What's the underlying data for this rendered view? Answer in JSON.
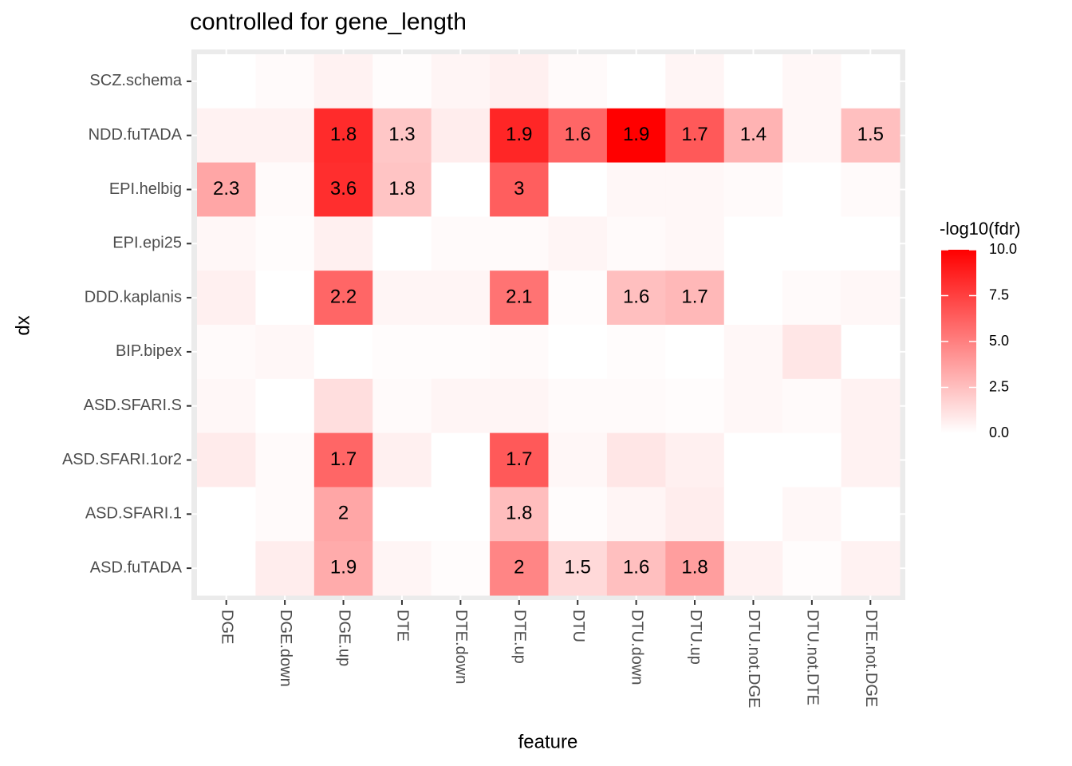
{
  "chart_data": {
    "type": "heatmap",
    "title": "controlled for gene_length",
    "x_label": "feature",
    "y_label": "dx",
    "x_categories": [
      "DGE",
      "DGE.down",
      "DGE.up",
      "DTE",
      "DTE.down",
      "DTE.up",
      "DTU",
      "DTU.down",
      "DTU.up",
      "DTU.not.DGE",
      "DTU.not.DTE",
      "DTE.not.DGE"
    ],
    "y_categories": [
      "SCZ.schema",
      "NDD.fuTADA",
      "EPI.helbig",
      "EPI.epi25",
      "DDD.kaplanis",
      "BIP.bipex",
      "ASD.SFARI.S",
      "ASD.SFARI.1or2",
      "ASD.SFARI.1",
      "ASD.fuTADA"
    ],
    "values": [
      [
        0,
        0.2,
        0.5,
        0.1,
        0.4,
        0.6,
        0.2,
        0,
        0.4,
        0,
        0.3,
        0
      ],
      [
        0.5,
        0.5,
        8.3,
        2.2,
        0.7,
        8.5,
        6.0,
        10.0,
        6.5,
        3.0,
        0.3,
        2.5
      ],
      [
        3.5,
        0.2,
        8.2,
        2.3,
        0,
        6.3,
        0,
        0.3,
        0.3,
        0.2,
        0,
        0.2
      ],
      [
        0.3,
        0.1,
        0.6,
        0,
        0.2,
        0.2,
        0.4,
        0.2,
        0.3,
        0,
        0,
        0
      ],
      [
        0.6,
        0,
        6.0,
        0.4,
        0.4,
        5.5,
        0.1,
        2.5,
        2.8,
        0,
        0.2,
        0.3
      ],
      [
        0.2,
        0.3,
        0,
        0.1,
        0.1,
        0.2,
        0,
        0.1,
        0,
        0.3,
        1.0,
        0
      ],
      [
        0.3,
        0,
        1.3,
        0.2,
        0.4,
        0.4,
        0.2,
        0.2,
        0.1,
        0.3,
        0.2,
        0.5
      ],
      [
        0.8,
        0.2,
        6.0,
        0.6,
        0,
        6.5,
        0.3,
        1.0,
        0.6,
        0,
        0,
        0.5
      ],
      [
        0,
        0.2,
        3.5,
        0,
        0,
        2.6,
        0.1,
        0.4,
        0.7,
        0,
        0.3,
        0
      ],
      [
        0,
        0.7,
        3.3,
        0.4,
        0.1,
        4.8,
        1.5,
        2.5,
        3.8,
        0.5,
        0.1,
        0.5
      ]
    ],
    "cell_labels": [
      [
        null,
        null,
        null,
        null,
        null,
        null,
        null,
        null,
        null,
        null,
        null,
        null
      ],
      [
        null,
        null,
        1.8,
        1.3,
        null,
        1.9,
        1.6,
        1.9,
        1.7,
        1.4,
        null,
        1.5
      ],
      [
        2.3,
        null,
        3.6,
        1.8,
        null,
        3,
        null,
        null,
        null,
        null,
        null,
        null
      ],
      [
        null,
        null,
        null,
        null,
        null,
        null,
        null,
        null,
        null,
        null,
        null,
        null
      ],
      [
        null,
        null,
        2.2,
        null,
        null,
        2.1,
        null,
        1.6,
        1.7,
        null,
        null,
        null
      ],
      [
        null,
        null,
        null,
        null,
        null,
        null,
        null,
        null,
        null,
        null,
        null,
        null
      ],
      [
        null,
        null,
        null,
        null,
        null,
        null,
        null,
        null,
        null,
        null,
        null,
        null
      ],
      [
        null,
        null,
        1.7,
        null,
        null,
        1.7,
        null,
        null,
        null,
        null,
        null,
        null
      ],
      [
        null,
        null,
        2,
        null,
        null,
        1.8,
        null,
        null,
        null,
        null,
        null,
        null
      ],
      [
        null,
        null,
        1.9,
        null,
        null,
        2,
        1.5,
        1.6,
        1.8,
        null,
        null,
        null
      ]
    ],
    "color_low": "#ffffff",
    "color_high": "#ff0000",
    "legend": {
      "title": "-log10(fdr)",
      "lim": [
        0,
        10
      ],
      "ticks": [
        {
          "value": 0,
          "label": "0.0"
        },
        {
          "value": 2.5,
          "label": "2.5"
        },
        {
          "value": 5,
          "label": "5.0"
        },
        {
          "value": 7.5,
          "label": "7.5"
        },
        {
          "value": 10,
          "label": "10.0"
        }
      ]
    }
  }
}
